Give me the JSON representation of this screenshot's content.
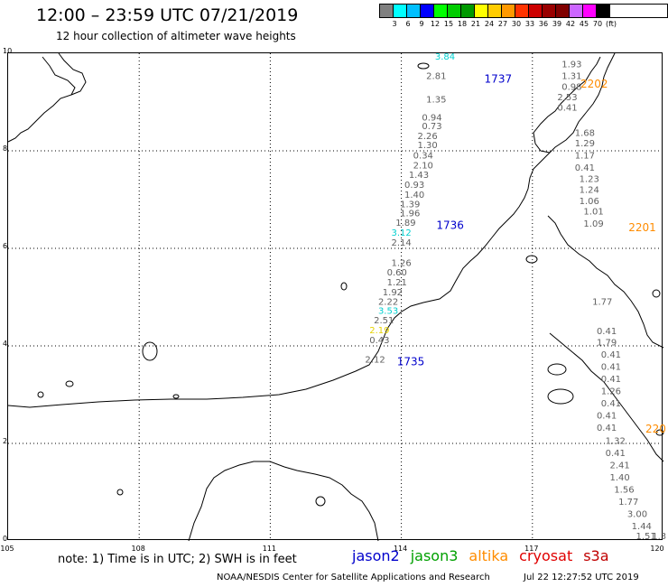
{
  "header": {
    "title": "12:00 – 23:59 UTC 07/21/2019",
    "subtitle": "12 hour collection of altimeter wave heights"
  },
  "legend": {
    "colors": [
      "#808080",
      "#00ffff",
      "#00bfff",
      "#0000ff",
      "#00ff00",
      "#00cc00",
      "#009900",
      "#ffff00",
      "#ffcc00",
      "#ff9900",
      "#ff3300",
      "#cc0000",
      "#990000",
      "#800000",
      "#cc66ff",
      "#ff00ff",
      "#000000"
    ],
    "labels": [
      "3",
      "6",
      "9",
      "12",
      "15",
      "18",
      "21",
      "24",
      "27",
      "30",
      "33",
      "36",
      "39",
      "42",
      "45",
      "70",
      "(ft)"
    ]
  },
  "axes": {
    "lat_labels": [
      "10",
      "8",
      "6",
      "4",
      "2",
      "0"
    ],
    "lon_labels": [
      "105",
      "108",
      "111",
      "114",
      "117",
      "120"
    ]
  },
  "observations": [
    {
      "v": "3.84",
      "lon": 115.0,
      "lat": 9.87,
      "c": "#00d0d0"
    },
    {
      "v": "1.93",
      "lon": 117.9,
      "lat": 9.71,
      "c": "#606060"
    },
    {
      "v": "2.81",
      "lon": 114.8,
      "lat": 9.47,
      "c": "#606060"
    },
    {
      "v": "1.31",
      "lon": 117.9,
      "lat": 9.47,
      "c": "#606060"
    },
    {
      "v": "0.98",
      "lon": 117.9,
      "lat": 9.25,
      "c": "#606060"
    },
    {
      "v": "2.53",
      "lon": 117.8,
      "lat": 9.04,
      "c": "#606060"
    },
    {
      "v": "1.35",
      "lon": 114.8,
      "lat": 8.99,
      "c": "#606060"
    },
    {
      "v": "0.41",
      "lon": 117.8,
      "lat": 8.82,
      "c": "#606060"
    },
    {
      "v": "0.94",
      "lon": 114.7,
      "lat": 8.62,
      "c": "#606060"
    },
    {
      "v": "0.73",
      "lon": 114.7,
      "lat": 8.44,
      "c": "#606060"
    },
    {
      "v": "1.68",
      "lon": 118.2,
      "lat": 8.31,
      "c": "#606060"
    },
    {
      "v": "2.26",
      "lon": 114.6,
      "lat": 8.24,
      "c": "#606060"
    },
    {
      "v": "1.29",
      "lon": 118.2,
      "lat": 8.09,
      "c": "#606060"
    },
    {
      "v": "1.30",
      "lon": 114.6,
      "lat": 8.06,
      "c": "#606060"
    },
    {
      "v": "0.34",
      "lon": 114.5,
      "lat": 7.84,
      "c": "#606060"
    },
    {
      "v": "1.17",
      "lon": 118.2,
      "lat": 7.84,
      "c": "#606060"
    },
    {
      "v": "2.10",
      "lon": 114.5,
      "lat": 7.64,
      "c": "#606060"
    },
    {
      "v": "0.41",
      "lon": 118.2,
      "lat": 7.59,
      "c": "#606060"
    },
    {
      "v": "1.43",
      "lon": 114.4,
      "lat": 7.44,
      "c": "#606060"
    },
    {
      "v": "1.23",
      "lon": 118.3,
      "lat": 7.36,
      "c": "#606060"
    },
    {
      "v": "0.93",
      "lon": 114.3,
      "lat": 7.24,
      "c": "#606060"
    },
    {
      "v": "1.24",
      "lon": 118.3,
      "lat": 7.14,
      "c": "#606060"
    },
    {
      "v": "1.40",
      "lon": 114.3,
      "lat": 7.04,
      "c": "#606060"
    },
    {
      "v": "1.06",
      "lon": 118.3,
      "lat": 6.91,
      "c": "#606060"
    },
    {
      "v": "1.39",
      "lon": 114.2,
      "lat": 6.84,
      "c": "#606060"
    },
    {
      "v": "1.01",
      "lon": 118.4,
      "lat": 6.69,
      "c": "#606060"
    },
    {
      "v": "1.96",
      "lon": 114.2,
      "lat": 6.66,
      "c": "#606060"
    },
    {
      "v": "1.89",
      "lon": 114.1,
      "lat": 6.46,
      "c": "#606060"
    },
    {
      "v": "1.09",
      "lon": 118.4,
      "lat": 6.44,
      "c": "#606060"
    },
    {
      "v": "3.12",
      "lon": 114.0,
      "lat": 6.26,
      "c": "#00d0d0"
    },
    {
      "v": "2.14",
      "lon": 114.0,
      "lat": 6.06,
      "c": "#606060"
    },
    {
      "v": "1.26",
      "lon": 114.0,
      "lat": 5.64,
      "c": "#606060"
    },
    {
      "v": "0.60",
      "lon": 113.9,
      "lat": 5.44,
      "c": "#606060"
    },
    {
      "v": "1.21",
      "lon": 113.9,
      "lat": 5.24,
      "c": "#606060"
    },
    {
      "v": "1.92",
      "lon": 113.8,
      "lat": 5.04,
      "c": "#606060"
    },
    {
      "v": "2.22",
      "lon": 113.7,
      "lat": 4.84,
      "c": "#606060"
    },
    {
      "v": "1.77",
      "lon": 118.6,
      "lat": 4.84,
      "c": "#606060"
    },
    {
      "v": "3.53",
      "lon": 113.7,
      "lat": 4.66,
      "c": "#00d0d0"
    },
    {
      "v": "2.51",
      "lon": 113.6,
      "lat": 4.46,
      "c": "#606060"
    },
    {
      "v": "2.19",
      "lon": 113.5,
      "lat": 4.26,
      "c": "#e6d200"
    },
    {
      "v": "0.41",
      "lon": 118.7,
      "lat": 4.24,
      "c": "#606060"
    },
    {
      "v": "0.43",
      "lon": 113.5,
      "lat": 4.06,
      "c": "#606060"
    },
    {
      "v": "1.79",
      "lon": 118.7,
      "lat": 4.01,
      "c": "#606060"
    },
    {
      "v": "0.41",
      "lon": 118.8,
      "lat": 3.76,
      "c": "#606060"
    },
    {
      "v": "2.12",
      "lon": 113.4,
      "lat": 3.66,
      "c": "#606060"
    },
    {
      "v": "0.41",
      "lon": 118.8,
      "lat": 3.51,
      "c": "#606060"
    },
    {
      "v": "0.41",
      "lon": 118.8,
      "lat": 3.26,
      "c": "#606060"
    },
    {
      "v": "1.26",
      "lon": 118.8,
      "lat": 3.01,
      "c": "#606060"
    },
    {
      "v": "0.41",
      "lon": 118.8,
      "lat": 2.76,
      "c": "#606060"
    },
    {
      "v": "0.41",
      "lon": 118.7,
      "lat": 2.51,
      "c": "#606060"
    },
    {
      "v": "0.41",
      "lon": 118.7,
      "lat": 2.26,
      "c": "#606060"
    },
    {
      "v": "1.32",
      "lon": 118.9,
      "lat": 1.99,
      "c": "#606060"
    },
    {
      "v": "0.41",
      "lon": 118.9,
      "lat": 1.74,
      "c": "#606060"
    },
    {
      "v": "2.41",
      "lon": 119.0,
      "lat": 1.49,
      "c": "#606060"
    },
    {
      "v": "1.40",
      "lon": 119.0,
      "lat": 1.24,
      "c": "#606060"
    },
    {
      "v": "1.56",
      "lon": 119.1,
      "lat": 0.99,
      "c": "#606060"
    },
    {
      "v": "1.77",
      "lon": 119.2,
      "lat": 0.74,
      "c": "#606060"
    },
    {
      "v": "3.00",
      "lon": 119.4,
      "lat": 0.49,
      "c": "#606060"
    },
    {
      "v": "1.44",
      "lon": 119.5,
      "lat": 0.24,
      "c": "#606060"
    },
    {
      "v": "1.51",
      "lon": 119.6,
      "lat": 0.04,
      "c": "#606060"
    },
    {
      "v": "1.3",
      "lon": 119.9,
      "lat": 0.04,
      "c": "#606060"
    }
  ],
  "track_labels": [
    {
      "v": "1737",
      "lon": 115.9,
      "lat": 9.4,
      "c": "#0000cc"
    },
    {
      "v": "2202",
      "lon": 118.1,
      "lat": 9.3,
      "c": "#ff8c00"
    },
    {
      "v": "1736",
      "lon": 114.8,
      "lat": 6.4,
      "c": "#0000cc"
    },
    {
      "v": "2201",
      "lon": 119.2,
      "lat": 6.35,
      "c": "#ff8c00"
    },
    {
      "v": "1735",
      "lon": 113.9,
      "lat": 3.6,
      "c": "#0000cc"
    },
    {
      "v": "220",
      "lon": 120.0,
      "lat": 2.22,
      "c": "#ff8c00"
    }
  ],
  "footer": {
    "note": "note:  1) Time is in UTC;  2) SWH is in feet",
    "satellites": [
      {
        "name": "jason2",
        "color": "#0000cc"
      },
      {
        "name": "jason3",
        "color": "#00a000"
      },
      {
        "name": "altika",
        "color": "#ff8c00"
      },
      {
        "name": "cryosat",
        "color": "#e00000"
      },
      {
        "name": "s3a",
        "color": "#c00000"
      }
    ],
    "credit": "NOAA/NESDIS Center for Satellite Applications and Research",
    "timestamp": "Jul 22 12:27:52 UTC 2019"
  }
}
